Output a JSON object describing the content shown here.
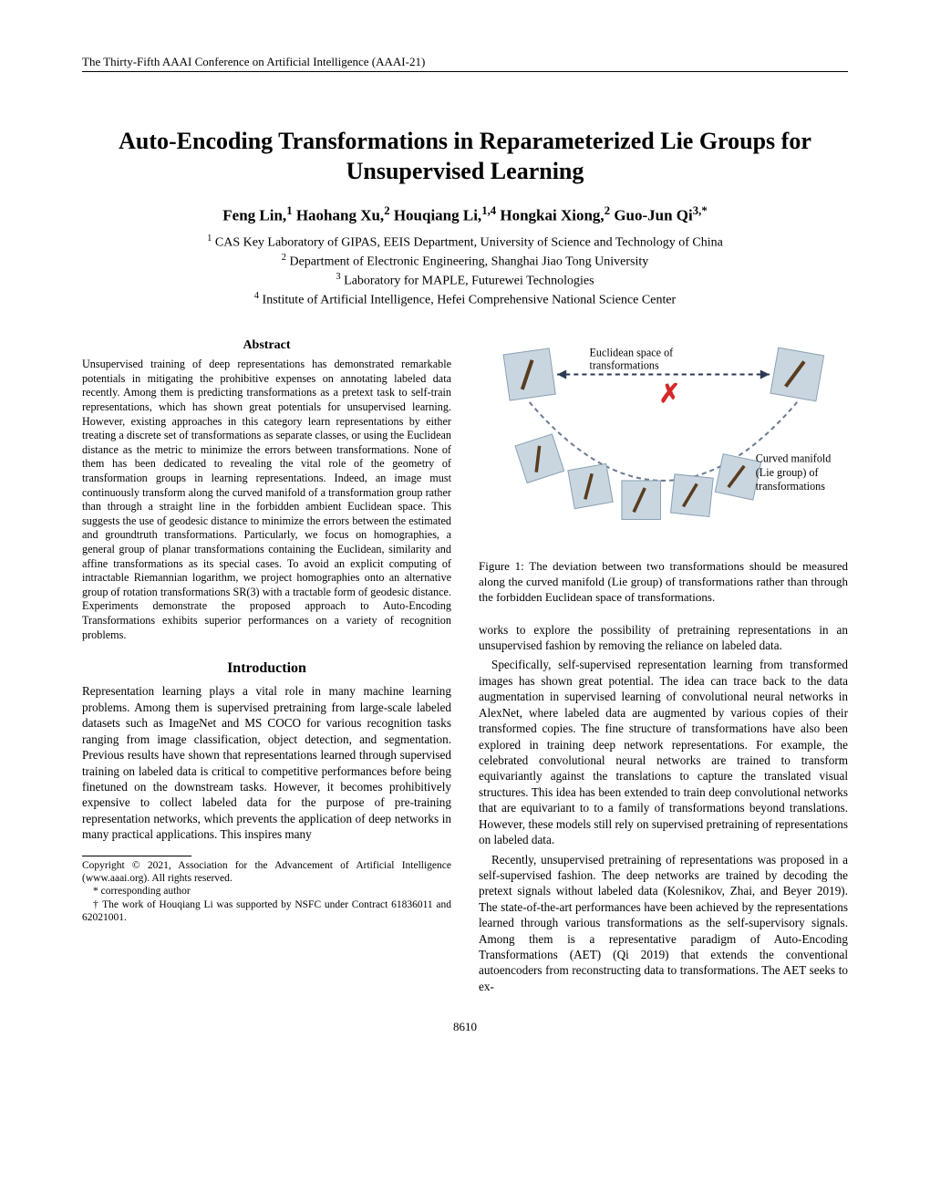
{
  "conference": "The Thirty-Fifth AAAI Conference on Artificial Intelligence (AAAI-21)",
  "title_line1": "Auto-Encoding Transformations in Reparameterized Lie Groups for",
  "title_line2": "Unsupervised Learning",
  "authors_html": "Feng Lin,<sup>1</sup> Haohang Xu,<sup>2</sup> Houqiang Li,<sup>1,4</sup> Hongkai Xiong,<sup>2</sup> Guo-Jun Qi<sup>3,*</sup>",
  "affiliations": [
    "<sup>1</sup> CAS Key Laboratory of GIPAS, EEIS Department, University of Science and Technology of China",
    "<sup>2</sup> Department of Electronic Engineering, Shanghai Jiao Tong University",
    "<sup>3</sup> Laboratory for MAPLE, Futurewei Technologies",
    "<sup>4</sup> Institute of Artificial Intelligence, Hefei Comprehensive National Science Center"
  ],
  "abstract_head": "Abstract",
  "abstract": "Unsupervised training of deep representations has demonstrated remarkable potentials in mitigating the prohibitive expenses on annotating labeled data recently. Among them is predicting transformations as a pretext task to self-train representations, which has shown great potentials for unsupervised learning. However, existing approaches in this category learn representations by either treating a discrete set of transformations as separate classes, or using the Euclidean distance as the metric to minimize the errors between transformations. None of them has been dedicated to revealing the vital role of the geometry of transformation groups in learning representations. Indeed, an image must continuously transform along the curved manifold of a transformation group rather than through a straight line in the forbidden ambient Euclidean space. This suggests the use of geodesic distance to minimize the errors between the estimated and groundtruth transformations. Particularly, we focus on homographies, a general group of planar transformations containing the Euclidean, similarity and affine transformations as its special cases. To avoid an explicit computing of intractable Riemannian logarithm, we project homographies onto an alternative group of rotation transformations SR(3) with a tractable form of geodesic distance. Experiments demonstrate the proposed approach to Auto-Encoding Transformations exhibits superior performances on a variety of recognition problems.",
  "intro_head": "Introduction",
  "intro_p1": "Representation learning plays a vital role in many machine learning problems. Among them is supervised pretraining from large-scale labeled datasets such as ImageNet and MS COCO for various recognition tasks ranging from image classification, object detection, and segmentation. Previous results have shown that representations learned through supervised training on labeled data is critical to competitive performances before being finetuned on the downstream tasks. However, it becomes prohibitively expensive to collect labeled data for the purpose of pre-training representation networks, which prevents the application of deep networks in many practical applications. This inspires many",
  "right_p1": "works to explore the possibility of pretraining representations in an unsupervised fashion by removing the reliance on labeled data.",
  "right_p2": "Specifically, self-supervised representation learning from transformed images has shown great potential. The idea can trace back to the data augmentation in supervised learning of convolutional neural networks in AlexNet, where labeled data are augmented by various copies of their transformed copies. The fine structure of transformations have also been explored in training deep network representations. For example, the celebrated convolutional neural networks are trained to transform equivariantly against the translations to capture the translated visual structures. This idea has been extended to train deep convolutional networks that are equivariant to to a family of transformations beyond translations. However, these models still rely on supervised pretraining of representations on labeled data.",
  "right_p3": "Recently, unsupervised pretraining of representations was proposed in a self-supervised fashion. The deep networks are trained by decoding the pretext signals without labeled data (Kolesnikov, Zhai, and Beyer 2019). The state-of-the-art performances have been achieved by the representations learned through various transformations as the self-supervisory signals. Among them is a representative paradigm of Auto-Encoding Transformations (AET) (Qi 2019) that extends the conventional autoencoders from reconstructing data to transformations. The AET seeks to ex-",
  "figure": {
    "label_top": "Euclidean space of",
    "label_top2": "transformations",
    "label_bottom": "Curved manifold",
    "label_bottom2": "(Lie group) of",
    "label_bottom3": "transformations",
    "x_color": "#d62828",
    "arrow_color": "#2b3a55",
    "curve_color": "#6b7a8f",
    "thumb_fill": "#c9d6df",
    "thumb_stroke": "#8aa0b5"
  },
  "figure_caption": "Figure 1: The deviation between two transformations should be measured along the curved manifold (Lie group) of transformations rather than through the forbidden Euclidean space of transformations.",
  "footnotes": [
    "Copyright © 2021, Association for the Advancement of Artificial Intelligence (www.aaai.org). All rights reserved.",
    "* corresponding author",
    "† The work of Houqiang Li was supported by NSFC under Contract 61836011 and 62021001."
  ],
  "page_number": "8610"
}
